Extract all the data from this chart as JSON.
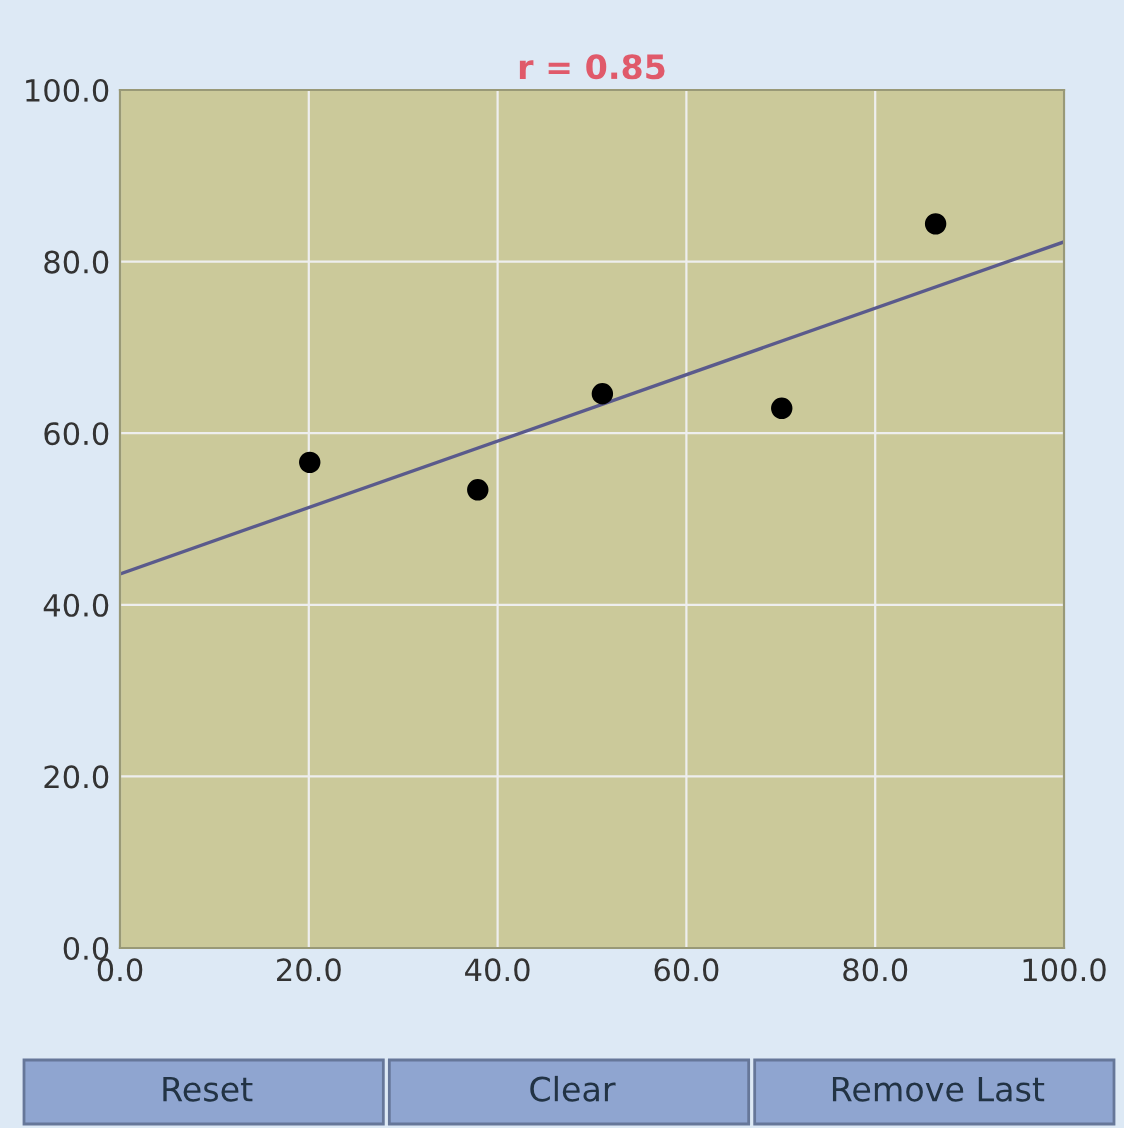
{
  "chart_data": {
    "type": "scatter",
    "title": "r = 0.85",
    "series": [
      {
        "color": "#000000",
        "marker": "circle",
        "x": [
          20.1,
          37.9,
          51.1,
          70.1,
          86.4
        ],
        "values": [
          56.6,
          53.4,
          64.6,
          62.9,
          84.4
        ]
      },
      {
        "type": "line",
        "marker": "none",
        "color": "#5a5a8c",
        "x": [
          0,
          100
        ],
        "values": [
          43.6,
          82.3
        ]
      }
    ],
    "xlim": [
      0,
      100
    ],
    "ylim": [
      0,
      100
    ],
    "xticks": [
      {
        "value": 0,
        "label": "0.0"
      },
      {
        "value": 20,
        "label": "20.0"
      },
      {
        "value": 40,
        "label": "40.0"
      },
      {
        "value": 60,
        "label": "60.0"
      },
      {
        "value": 80,
        "label": "80.0"
      },
      {
        "value": 100,
        "label": "100.0"
      }
    ],
    "yticks": [
      {
        "value": 0,
        "label": "0.0"
      },
      {
        "value": 20,
        "label": "20.0"
      },
      {
        "value": 40,
        "label": "40.0"
      },
      {
        "value": 60,
        "label": "60.0"
      },
      {
        "value": 80,
        "label": "80.0"
      },
      {
        "value": 100,
        "label": "100.0"
      }
    ],
    "grid": true,
    "annotations": [
      "Reset",
      "Clear",
      "Remove Last"
    ]
  }
}
